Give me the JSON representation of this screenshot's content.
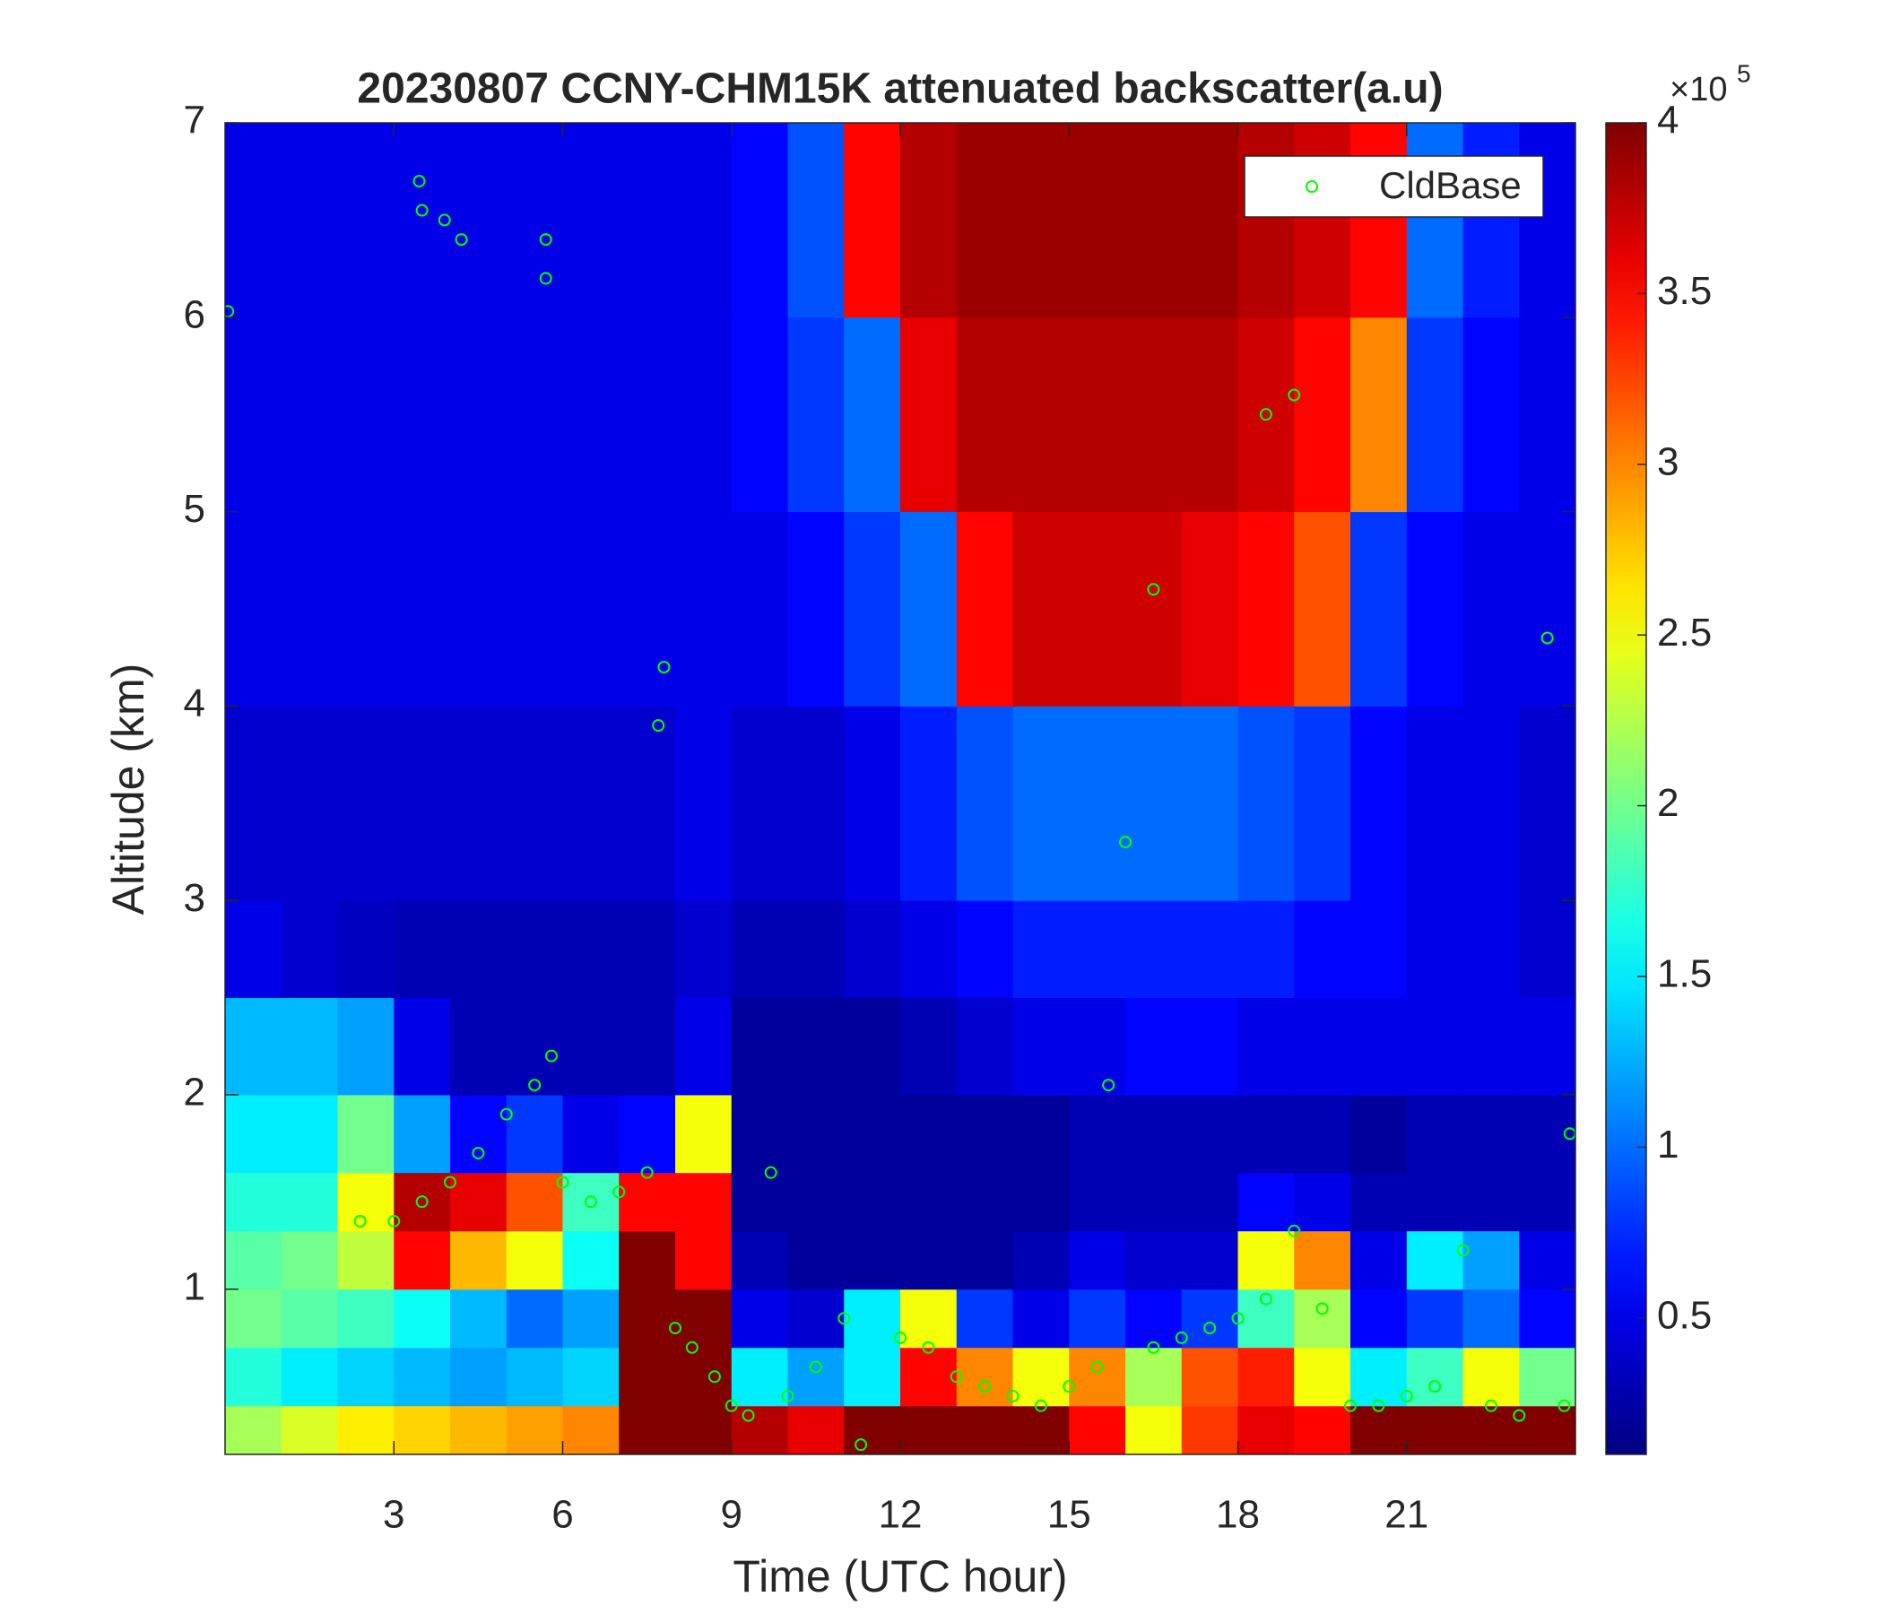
{
  "chart_data": {
    "type": "heatmap",
    "title": "20230807 CCNY-CHM15K attenuated backscatter(a.u)",
    "xlabel": "Time (UTC hour)",
    "ylabel": "Altitude (km)",
    "xlim": [
      0,
      24
    ],
    "ylim": [
      0.15,
      7
    ],
    "xticks": [
      3,
      6,
      9,
      12,
      15,
      18,
      21
    ],
    "yticks": [
      1,
      2,
      3,
      4,
      5,
      6,
      7
    ],
    "colormap": "jet",
    "clim": [
      0.1,
      4
    ],
    "colorbar_ticks": [
      0.5,
      1,
      1.5,
      2,
      2.5,
      3,
      3.5,
      4
    ],
    "colorbar_scale": {
      "base": "×10",
      "exponent": "5"
    },
    "x_edges": [
      0,
      1,
      2,
      3,
      4,
      5,
      6,
      7,
      8,
      9,
      10,
      11,
      12,
      13,
      14,
      15,
      16,
      17,
      18,
      19,
      20,
      21,
      22,
      23,
      24
    ],
    "y_edges": [
      0.15,
      0.4,
      0.7,
      1.0,
      1.3,
      1.6,
      2.0,
      2.5,
      3,
      4,
      5,
      6,
      7
    ],
    "z": [
      [
        2.2,
        2.4,
        2.6,
        2.7,
        2.8,
        2.9,
        3.0,
        4,
        4,
        3.8,
        3.6,
        4,
        4,
        4,
        4,
        3.5,
        2.5,
        3.3,
        3.6,
        3.5,
        4,
        4,
        4,
        4
      ],
      [
        1.7,
        1.5,
        1.4,
        1.3,
        1.2,
        1.3,
        1.4,
        4,
        4,
        1.5,
        1.2,
        1.5,
        3.5,
        3.0,
        2.5,
        3.0,
        2.2,
        3.2,
        3.4,
        2.5,
        1.5,
        1.8,
        2.5,
        2.0
      ],
      [
        2.0,
        1.9,
        1.8,
        1.6,
        1.3,
        1.0,
        1.2,
        4,
        4,
        0.5,
        0.4,
        1.5,
        2.5,
        0.8,
        0.5,
        0.8,
        0.6,
        0.8,
        1.8,
        2.2,
        0.6,
        0.8,
        1.0,
        0.6
      ],
      [
        1.9,
        2.0,
        2.3,
        3.5,
        2.8,
        2.5,
        1.6,
        4,
        3.5,
        0.3,
        0.2,
        0.2,
        0.2,
        0.2,
        0.3,
        0.5,
        0.4,
        0.4,
        2.5,
        3.0,
        0.5,
        1.5,
        1.2,
        0.5
      ],
      [
        1.7,
        1.7,
        2.5,
        3.8,
        3.6,
        3.2,
        1.8,
        3.5,
        3.5,
        0.2,
        0.2,
        0.2,
        0.2,
        0.2,
        0.2,
        0.3,
        0.3,
        0.3,
        0.6,
        0.5,
        0.3,
        0.3,
        0.3,
        0.3
      ],
      [
        1.5,
        1.5,
        2.0,
        1.2,
        0.6,
        0.8,
        0.5,
        0.6,
        2.5,
        0.2,
        0.2,
        0.2,
        0.2,
        0.2,
        0.2,
        0.3,
        0.3,
        0.3,
        0.3,
        0.3,
        0.2,
        0.3,
        0.3,
        0.3
      ],
      [
        1.3,
        1.3,
        1.2,
        0.5,
        0.3,
        0.3,
        0.3,
        0.3,
        0.5,
        0.2,
        0.2,
        0.2,
        0.3,
        0.4,
        0.5,
        0.5,
        0.6,
        0.6,
        0.5,
        0.5,
        0.5,
        0.5,
        0.5,
        0.5
      ],
      [
        0.5,
        0.4,
        0.35,
        0.3,
        0.3,
        0.3,
        0.3,
        0.3,
        0.4,
        0.3,
        0.3,
        0.4,
        0.5,
        0.6,
        0.7,
        0.7,
        0.7,
        0.7,
        0.7,
        0.6,
        0.6,
        0.5,
        0.5,
        0.4
      ],
      [
        0.4,
        0.4,
        0.4,
        0.4,
        0.4,
        0.4,
        0.4,
        0.4,
        0.5,
        0.4,
        0.4,
        0.5,
        0.7,
        0.9,
        1.0,
        1.0,
        1.0,
        1.0,
        0.9,
        0.8,
        0.6,
        0.5,
        0.5,
        0.4
      ],
      [
        0.5,
        0.5,
        0.5,
        0.5,
        0.5,
        0.5,
        0.5,
        0.5,
        0.5,
        0.5,
        0.6,
        0.8,
        1.0,
        3.5,
        3.7,
        3.7,
        3.7,
        3.6,
        3.5,
        3.2,
        0.8,
        0.6,
        0.5,
        0.5
      ],
      [
        0.5,
        0.5,
        0.5,
        0.5,
        0.5,
        0.5,
        0.5,
        0.5,
        0.5,
        0.6,
        0.8,
        1.0,
        3.6,
        3.8,
        3.8,
        3.8,
        3.8,
        3.8,
        3.7,
        3.5,
        3.0,
        0.8,
        0.6,
        0.5
      ],
      [
        0.5,
        0.5,
        0.5,
        0.5,
        0.5,
        0.5,
        0.5,
        0.5,
        0.5,
        0.6,
        0.9,
        3.5,
        3.8,
        3.9,
        3.9,
        3.9,
        3.9,
        3.9,
        3.8,
        3.7,
        3.5,
        1.0,
        0.7,
        0.5
      ]
    ],
    "series": [
      {
        "name": "CldBase",
        "color": "#00ff00",
        "x": [
          0.05,
          3.45,
          3.5,
          3.9,
          4.2,
          5.7,
          5.7,
          2.4,
          3,
          3.5,
          4,
          4.5,
          5,
          5.5,
          5.8,
          6,
          6.5,
          7,
          7.5,
          7.7,
          7.8,
          8,
          8.3,
          8.7,
          9,
          9.3,
          9.7,
          10,
          10.5,
          11,
          11.3,
          12,
          12.5,
          13,
          13.5,
          14,
          14.5,
          15,
          15.5,
          15.7,
          16,
          16.5,
          16.5,
          17,
          17.5,
          18,
          18.5,
          18.5,
          19,
          19,
          19.5,
          20,
          20.5,
          21,
          21.5,
          22,
          22.5,
          23,
          23.5,
          23.8,
          23.9
        ],
        "y": [
          6.03,
          6.7,
          6.55,
          6.5,
          6.4,
          6.4,
          6.2,
          1.35,
          1.35,
          1.45,
          1.55,
          1.7,
          1.9,
          2.05,
          2.2,
          1.55,
          1.45,
          1.5,
          1.6,
          3.9,
          4.2,
          0.8,
          0.7,
          0.55,
          0.4,
          0.35,
          1.6,
          0.45,
          0.6,
          0.85,
          0.2,
          0.75,
          0.7,
          0.55,
          0.5,
          0.45,
          0.4,
          0.5,
          0.6,
          2.05,
          3.3,
          4.6,
          0.7,
          0.75,
          0.8,
          0.85,
          0.95,
          5.5,
          5.6,
          1.3,
          0.9,
          0.4,
          0.4,
          0.45,
          0.5,
          1.2,
          0.4,
          0.35,
          4.35,
          0.4,
          1.8
        ]
      }
    ],
    "legend": "northeast"
  }
}
